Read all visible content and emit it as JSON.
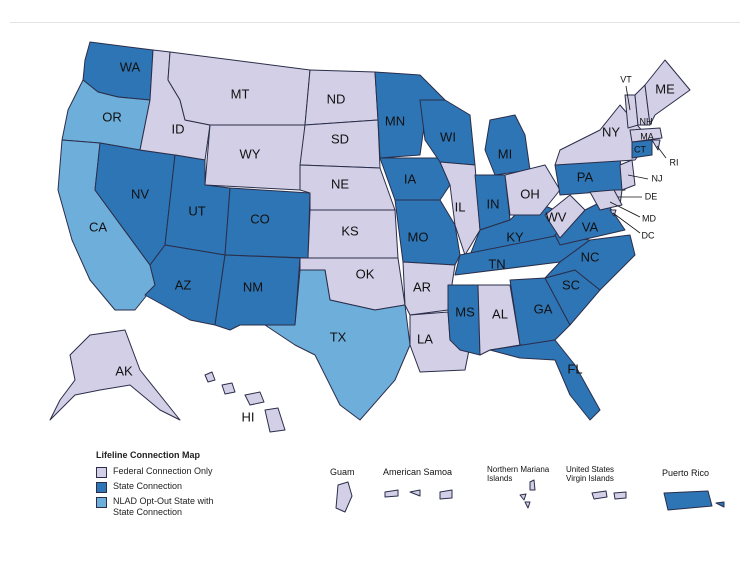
{
  "legend": {
    "title": "Lifeline Connection Map",
    "items": [
      {
        "key": "federal",
        "label": "Federal Connection Only",
        "color": "#d3cfe6"
      },
      {
        "key": "state",
        "label": "State Connection",
        "color": "#2e75b6"
      },
      {
        "key": "nlad",
        "label": "NLAD Opt-Out State with\nState Connection",
        "color": "#6eaedb"
      }
    ]
  },
  "states": {
    "WA": "state",
    "OR": "nlad",
    "CA": "nlad",
    "NV": "state",
    "ID": "federal",
    "MT": "federal",
    "WY": "federal",
    "UT": "state",
    "AZ": "state",
    "CO": "state",
    "NM": "state",
    "ND": "federal",
    "SD": "federal",
    "NE": "federal",
    "KS": "federal",
    "OK": "federal",
    "TX": "nlad",
    "MN": "state",
    "IA": "state",
    "MO": "state",
    "AR": "federal",
    "LA": "federal",
    "WI": "state",
    "IL": "federal",
    "MS": "state",
    "MI": "state",
    "IN": "state",
    "KY": "state",
    "TN": "state",
    "AL": "federal",
    "OH": "federal",
    "GA": "state",
    "FL": "state",
    "SC": "state",
    "NC": "state",
    "VA": "state",
    "WV": "federal",
    "PA": "state",
    "NY": "federal",
    "VT": "federal",
    "NH": "federal",
    "ME": "federal",
    "MA": "federal",
    "RI": "federal",
    "CT": "state",
    "NJ": "federal",
    "DE": "federal",
    "MD": "federal",
    "DC": "federal",
    "AK": "federal",
    "HI": "federal"
  },
  "territories": [
    {
      "key": "guam",
      "label": "Guam",
      "status": "federal"
    },
    {
      "key": "american-samoa",
      "label": "American Samoa",
      "status": "federal"
    },
    {
      "key": "northern-mariana",
      "label": "Northern Mariana\nIslands",
      "status": "federal"
    },
    {
      "key": "usvi",
      "label": "United States\nVirgin Islands",
      "status": "federal"
    },
    {
      "key": "puerto-rico",
      "label": "Puerto Rico",
      "status": "state"
    }
  ]
}
